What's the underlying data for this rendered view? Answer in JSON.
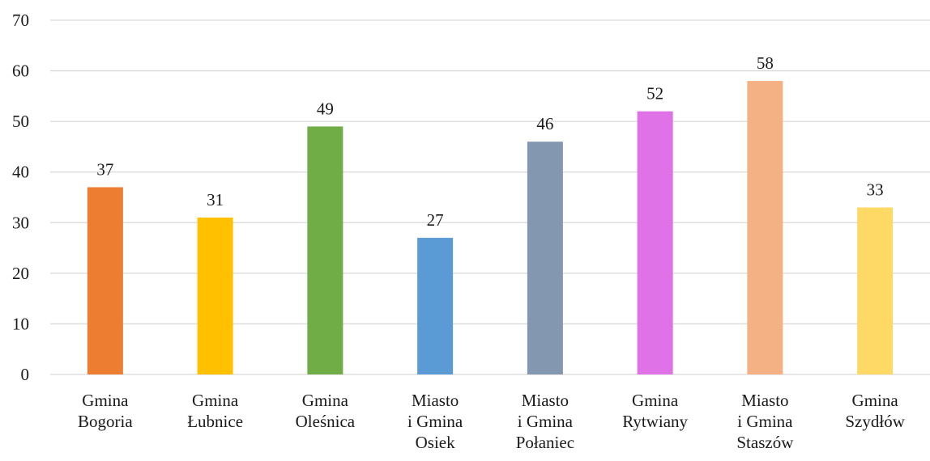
{
  "chart_data": {
    "type": "bar",
    "title": "",
    "xlabel": "",
    "ylabel": "",
    "ylim": [
      0,
      70
    ],
    "yticks": [
      0,
      10,
      20,
      30,
      40,
      50,
      60,
      70
    ],
    "grid": true,
    "legend": "none",
    "categories": [
      [
        "Gmina",
        "Bogoria"
      ],
      [
        "Gmina",
        "Łubnice"
      ],
      [
        "Gmina",
        "Oleśnica"
      ],
      [
        "Miasto",
        "i Gmina",
        "Osiek"
      ],
      [
        "Miasto",
        "i Gmina",
        "Połaniec"
      ],
      [
        "Gmina",
        "Rytwiany"
      ],
      [
        "Miasto",
        "i Gmina",
        "Staszów"
      ],
      [
        "Gmina",
        "Szydłów"
      ]
    ],
    "values": [
      37,
      31,
      49,
      27,
      46,
      52,
      58,
      33
    ],
    "data_labels": [
      "37",
      "31",
      "49",
      "27",
      "46",
      "52",
      "58",
      "33"
    ],
    "colors": [
      "#ED7D31",
      "#FFC000",
      "#70AD47",
      "#5B9BD5",
      "#8497B0",
      "#E072E8",
      "#F4B183",
      "#FFD966"
    ]
  }
}
